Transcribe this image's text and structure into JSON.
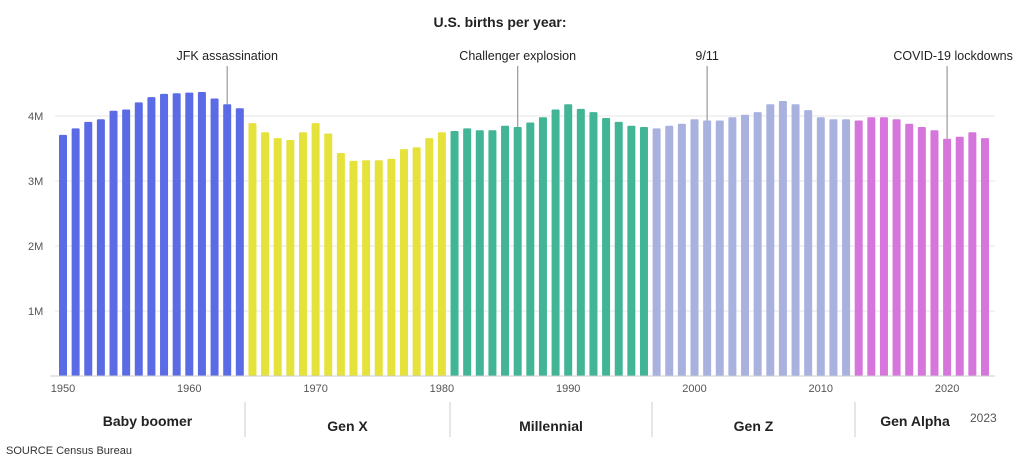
{
  "chart_data": {
    "type": "bar",
    "title": "U.S. births per year:",
    "xlabel": "",
    "ylabel": "",
    "ylim": [
      0,
      4500000
    ],
    "yticks": [
      {
        "value": 1000000,
        "label": "1M"
      },
      {
        "value": 2000000,
        "label": "2M"
      },
      {
        "value": 3000000,
        "label": "3M"
      },
      {
        "value": 4000000,
        "label": "4M"
      }
    ],
    "xticks": [
      1950,
      1960,
      1970,
      1980,
      1990,
      2000,
      2010,
      2020
    ],
    "x_start": 1950,
    "values_millions": [
      3.71,
      3.81,
      3.91,
      3.95,
      4.08,
      4.1,
      4.21,
      4.29,
      4.34,
      4.35,
      4.36,
      4.37,
      4.27,
      4.18,
      4.12,
      3.89,
      3.75,
      3.66,
      3.63,
      3.75,
      3.89,
      3.73,
      3.43,
      3.31,
      3.32,
      3.32,
      3.34,
      3.49,
      3.52,
      3.66,
      3.75,
      3.77,
      3.81,
      3.78,
      3.78,
      3.85,
      3.83,
      3.9,
      3.98,
      4.1,
      4.18,
      4.11,
      4.06,
      3.97,
      3.91,
      3.85,
      3.83,
      3.81,
      3.85,
      3.88,
      3.95,
      3.93,
      3.93,
      3.98,
      4.02,
      4.06,
      4.18,
      4.23,
      4.18,
      4.09,
      3.98,
      3.95,
      3.95,
      3.93,
      3.98,
      3.98,
      3.95,
      3.88,
      3.83,
      3.78,
      3.65,
      3.68,
      3.75,
      3.66
    ],
    "generations": [
      {
        "name": "Baby boomer",
        "start": 1950,
        "end": 1964,
        "color": "#5b6be6"
      },
      {
        "name": "Gen X",
        "start": 1965,
        "end": 1980,
        "color": "#e6e23c"
      },
      {
        "name": "Millennial",
        "start": 1981,
        "end": 1996,
        "color": "#41b596"
      },
      {
        "name": "Gen Z",
        "start": 1997,
        "end": 2012,
        "color": "#a9b2df"
      },
      {
        "name": "Gen Alpha",
        "start": 2013,
        "end": 2023,
        "color": "#d676dc"
      }
    ],
    "annotations": [
      {
        "year": 1963,
        "label": "JFK assassination"
      },
      {
        "year": 1986,
        "label": "Challenger explosion"
      },
      {
        "year": 2001,
        "label": "9/11"
      },
      {
        "year": 2020,
        "label": "COVID-19 lockdowns"
      }
    ],
    "end_year_label": "2023",
    "source": "SOURCE Census Bureau"
  }
}
